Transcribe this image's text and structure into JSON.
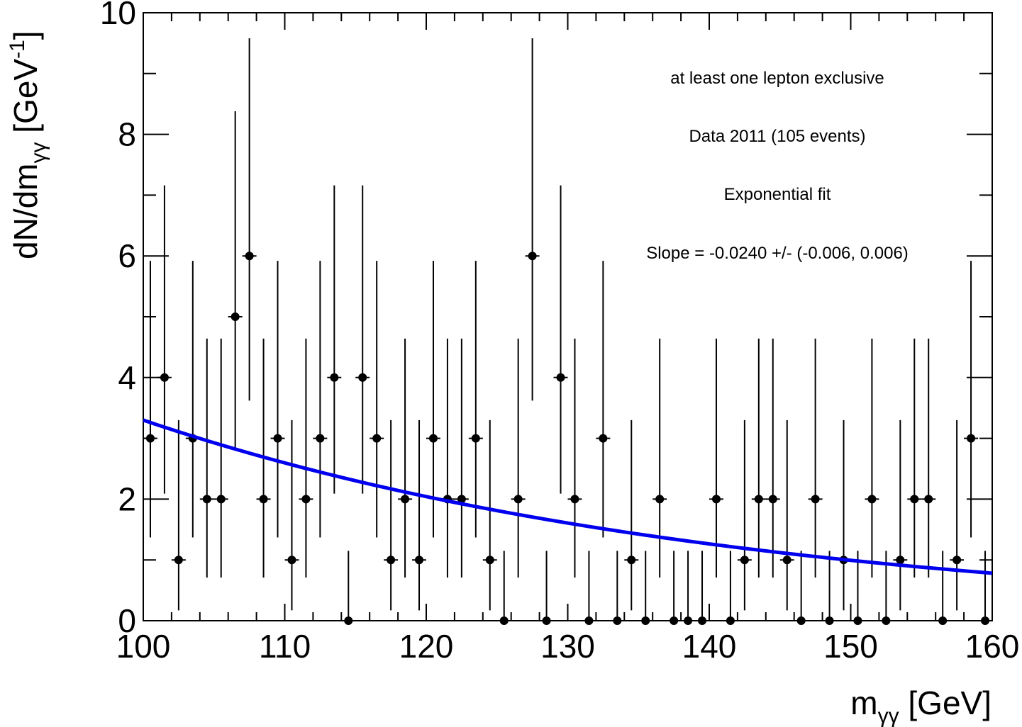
{
  "chart_data": {
    "type": "scatter",
    "title": "",
    "xlabel": {
      "main": "m",
      "sub": "γγ",
      "unit": " [GeV]"
    },
    "ylabel": {
      "main": "dN/dm",
      "sub": "γγ",
      "unit_pre": " [GeV",
      "unit_sup": "-1",
      "unit_post": "]"
    },
    "xlim": [
      100,
      160
    ],
    "ylim": [
      0,
      10
    ],
    "x_ticks": [
      100,
      110,
      120,
      130,
      140,
      150,
      160
    ],
    "y_ticks": [
      0,
      2,
      4,
      6,
      8,
      10
    ],
    "grid": false,
    "annotations": [
      "at least one lepton exclusive",
      "Data 2011 (105 events)",
      "Exponential fit",
      "Slope = -0.0240 +/-  (-0.006, 0.006)"
    ],
    "series": [
      {
        "bin_width": 1,
        "x": [
          100.5,
          101.5,
          102.5,
          103.5,
          104.5,
          105.5,
          106.5,
          107.5,
          108.5,
          109.5,
          110.5,
          111.5,
          112.5,
          113.5,
          114.5,
          115.5,
          116.5,
          117.5,
          118.5,
          119.5,
          120.5,
          121.5,
          122.5,
          123.5,
          124.5,
          125.5,
          126.5,
          127.5,
          128.5,
          129.5,
          130.5,
          131.5,
          132.5,
          133.5,
          134.5,
          135.5,
          136.5,
          137.5,
          138.5,
          139.5,
          140.5,
          141.5,
          142.5,
          143.5,
          144.5,
          145.5,
          146.5,
          147.5,
          148.5,
          149.5,
          150.5,
          151.5,
          152.5,
          153.5,
          154.5,
          155.5,
          156.5,
          157.5,
          158.5,
          159.5
        ],
        "y": [
          3,
          4,
          1,
          3,
          2,
          2,
          5,
          6,
          2,
          3,
          1,
          2,
          3,
          4,
          0,
          4,
          3,
          1,
          2,
          1,
          3,
          2,
          2,
          3,
          1,
          0,
          2,
          6,
          0,
          4,
          2,
          0,
          3,
          0,
          1,
          0,
          2,
          0,
          0,
          0,
          2,
          0,
          1,
          2,
          2,
          1,
          0,
          2,
          0,
          1,
          0,
          2,
          0,
          1,
          2,
          2,
          0,
          1,
          3,
          0
        ],
        "err_low": [
          1.63,
          1.91,
          0.83,
          1.63,
          1.29,
          1.29,
          2.16,
          2.38,
          1.29,
          1.63,
          0.83,
          1.29,
          1.63,
          1.91,
          0,
          1.91,
          1.63,
          0.83,
          1.29,
          0.83,
          1.63,
          1.29,
          1.29,
          1.63,
          0.83,
          0,
          1.29,
          2.38,
          0,
          1.91,
          1.29,
          0,
          1.63,
          0,
          0.83,
          0,
          1.29,
          0,
          0,
          0,
          1.29,
          0,
          0.83,
          1.29,
          1.29,
          0.83,
          0,
          1.29,
          0,
          0.83,
          0,
          1.29,
          0,
          0.83,
          1.29,
          1.29,
          0,
          0.83,
          1.63,
          0
        ],
        "err_high": [
          2.92,
          3.16,
          2.3,
          2.92,
          2.64,
          2.64,
          3.38,
          3.58,
          2.64,
          2.92,
          2.3,
          2.64,
          2.92,
          3.16,
          1.15,
          3.16,
          2.92,
          2.3,
          2.64,
          2.3,
          2.92,
          2.64,
          2.64,
          2.92,
          2.3,
          1.15,
          2.64,
          3.58,
          1.15,
          3.16,
          2.64,
          1.15,
          2.92,
          1.15,
          2.3,
          1.15,
          2.64,
          1.15,
          1.15,
          1.15,
          2.64,
          1.15,
          2.3,
          2.64,
          2.64,
          2.3,
          1.15,
          2.64,
          1.15,
          2.3,
          1.15,
          2.64,
          1.15,
          2.3,
          2.64,
          2.64,
          1.15,
          2.3,
          2.92,
          1.15
        ],
        "color": "#000000"
      },
      {
        "type": "line",
        "fit": "exponential",
        "amplitude": 3.3,
        "slope": -0.024,
        "x0": 100,
        "x_range": [
          100,
          160
        ],
        "color": "#0000ee"
      }
    ]
  }
}
